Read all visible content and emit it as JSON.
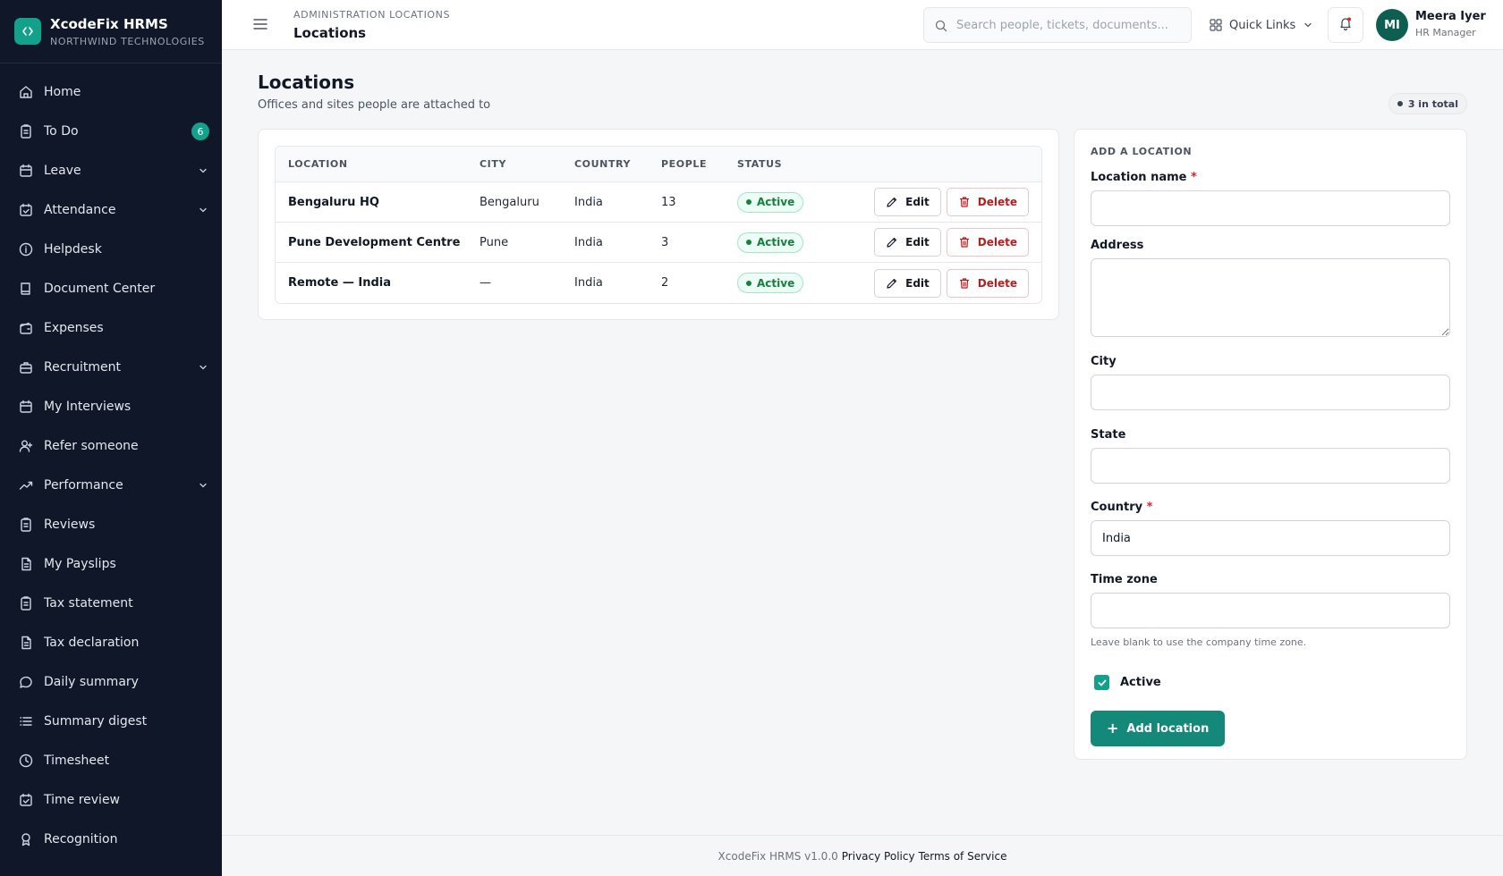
{
  "app": {
    "name": "XcodeFix HRMS",
    "org": "NORTHWIND TECHNOLOGIES"
  },
  "sidebar": {
    "items": [
      {
        "label": "Home",
        "icon": "home-icon"
      },
      {
        "label": "To Do",
        "icon": "clipboard-icon",
        "badge": "6"
      },
      {
        "label": "Leave",
        "icon": "calendar-icon",
        "chevron": true
      },
      {
        "label": "Attendance",
        "icon": "calendar-check-icon",
        "chevron": true
      },
      {
        "label": "Helpdesk",
        "icon": "info-icon"
      },
      {
        "label": "Document Center",
        "icon": "book-icon"
      },
      {
        "label": "Expenses",
        "icon": "wallet-icon"
      },
      {
        "label": "Recruitment",
        "icon": "briefcase-icon",
        "chevron": true
      },
      {
        "label": "My Interviews",
        "icon": "calendar-icon"
      },
      {
        "label": "Refer someone",
        "icon": "user-plus-icon"
      },
      {
        "label": "Performance",
        "icon": "trending-up-icon",
        "chevron": true
      },
      {
        "label": "Reviews",
        "icon": "clipboard-icon"
      },
      {
        "label": "My Payslips",
        "icon": "file-icon"
      },
      {
        "label": "Tax statement",
        "icon": "clipboard-icon"
      },
      {
        "label": "Tax declaration",
        "icon": "file-icon"
      },
      {
        "label": "Daily summary",
        "icon": "message-icon"
      },
      {
        "label": "Summary digest",
        "icon": "list-icon"
      },
      {
        "label": "Timesheet",
        "icon": "clock-icon"
      },
      {
        "label": "Time review",
        "icon": "calendar-check-icon"
      },
      {
        "label": "Recognition",
        "icon": "award-icon"
      }
    ]
  },
  "topbar": {
    "section": "ADMINISTRATION LOCATIONS",
    "current": "Locations",
    "search_placeholder": "Search people, tickets, documents...",
    "quick_links": "Quick Links",
    "user_initials": "MI",
    "user_name": "Meera Iyer",
    "user_role": "HR Manager"
  },
  "page": {
    "title": "Locations",
    "subtitle": "Offices and sites people are attached to",
    "total": "3 in total"
  },
  "table": {
    "headers": [
      "LOCATION",
      "CITY",
      "COUNTRY",
      "PEOPLE",
      "STATUS"
    ],
    "edit_label": "Edit",
    "delete_label": "Delete",
    "rows": [
      {
        "location": "Bengaluru HQ",
        "city": "Bengaluru",
        "country": "India",
        "people": "13",
        "status": "Active"
      },
      {
        "location": "Pune Development Centre",
        "city": "Pune",
        "country": "India",
        "people": "3",
        "status": "Active"
      },
      {
        "location": "Remote — India",
        "city": "—",
        "country": "India",
        "people": "2",
        "status": "Active"
      }
    ]
  },
  "form": {
    "title": "ADD A LOCATION",
    "name_label": "Location name",
    "name_value": "",
    "address_label": "Address",
    "address_value": "",
    "city_label": "City",
    "city_value": "",
    "state_label": "State",
    "state_value": "",
    "country_label": "Country",
    "country_value": "India",
    "timezone_label": "Time zone",
    "timezone_value": "",
    "timezone_hint": "Leave blank to use the company time zone.",
    "active_label": "Active",
    "active_checked": true,
    "submit_label": "Add location"
  },
  "footer": {
    "version": "XcodeFix HRMS v1.0.0",
    "privacy": "Privacy Policy",
    "terms": "Terms of Service"
  },
  "colors": {
    "sidebar_bg": "#0f1729",
    "accent": "#14a18c",
    "button": "#14897a",
    "danger": "#b91c1c",
    "success": "#15803d"
  }
}
